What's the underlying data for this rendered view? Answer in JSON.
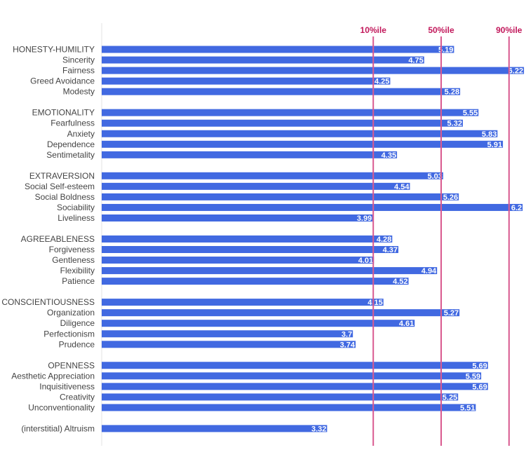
{
  "chart_data": {
    "type": "bar",
    "orientation": "horizontal",
    "categories": [
      "HONESTY-HUMILITY",
      "Sincerity",
      "Fairness",
      "Greed Avoidance",
      "Modesty",
      "EMOTIONALITY",
      "Fearfulness",
      "Anxiety",
      "Dependence",
      "Sentimetality",
      "EXTRAVERSION",
      "Social Self-esteem",
      "Social Boldness",
      "Sociability",
      "Liveliness",
      "AGREEABLENESS",
      "Forgiveness",
      "Gentleness",
      "Flexibility",
      "Patience",
      "CONSCIENTIOUSNESS",
      "Organization",
      "Diligence",
      "Perfectionism",
      "Prudence",
      "OPENNESS",
      "Aesthetic Appreciation",
      "Inquisitiveness",
      "Creativity",
      "Unconventionality",
      "(interstitial) Altruism"
    ],
    "values": [
      5.19,
      4.75,
      6.22,
      4.25,
      5.28,
      5.55,
      5.32,
      5.83,
      5.91,
      4.35,
      5.03,
      4.54,
      5.26,
      6.2,
      3.99,
      4.28,
      4.37,
      4.01,
      4.94,
      4.52,
      4.15,
      5.27,
      4.61,
      3.7,
      3.74,
      5.69,
      5.59,
      5.69,
      5.25,
      5.51,
      3.32
    ],
    "value_labels": [
      "5.19",
      "4.75",
      "6.22",
      "4.25",
      "5.28",
      "5.55",
      "5.32",
      "5.83",
      "5.91",
      "4.35",
      "5.03",
      "4.54",
      "5.26",
      "6.2",
      "3.99",
      "4.28",
      "4.37",
      "4.01",
      "4.94",
      "4.52",
      "4.15",
      "5.27",
      "4.61",
      "3.7",
      "3.74",
      "5.69",
      "5.59",
      "5.69",
      "5.25",
      "5.51",
      "3.32"
    ],
    "reference_lines": [
      {
        "label": "10%ile",
        "value": 4
      },
      {
        "label": "50%ile",
        "value": 5
      },
      {
        "label": "90%ile",
        "value": 6
      }
    ],
    "xlim": [
      0.0,
      6.6
    ],
    "grid": false,
    "legend": "none",
    "title": "",
    "xlabel": "",
    "ylabel": "",
    "colors": {
      "bar": "#4169e1",
      "reference_line": "#d9598f",
      "reference_label": "#c2185b",
      "value_label": "#ffffff",
      "category_label": "#444444",
      "axis": "#e3e3e3"
    }
  }
}
